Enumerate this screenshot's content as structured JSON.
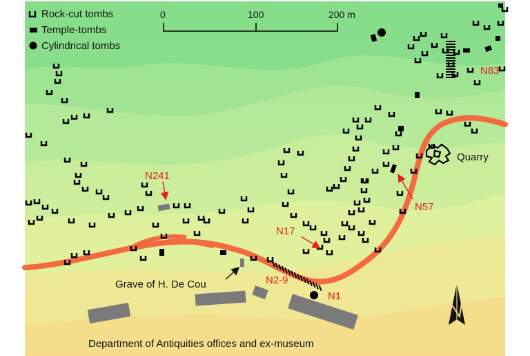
{
  "legend": {
    "rock_cut_label": "Rock-cut tombs",
    "temple_label": "Temple-tombs",
    "cylindrical_label": "Cylindrical tombs"
  },
  "scale": {
    "tick0": "0",
    "tick1": "100",
    "tick2": "200 m"
  },
  "labels": {
    "n83": "N83",
    "quarry": "Quarry",
    "n241": "N241",
    "n57": "N57",
    "n17": "N17",
    "grave": "Grave of H. De Cou",
    "n2_9": "N2-9",
    "n1": "N1",
    "department": "Department of Antiquities offices and ex-museum"
  },
  "colors": {
    "road": "#f26a3d",
    "label_red": "#e8201b",
    "tomb": "#000000",
    "building": "#7a7a7a",
    "contour_top": "#86df8a",
    "contour_bottom": "#f6dc8a"
  },
  "icons": {
    "north_arrow": "north-arrow-icon"
  }
}
